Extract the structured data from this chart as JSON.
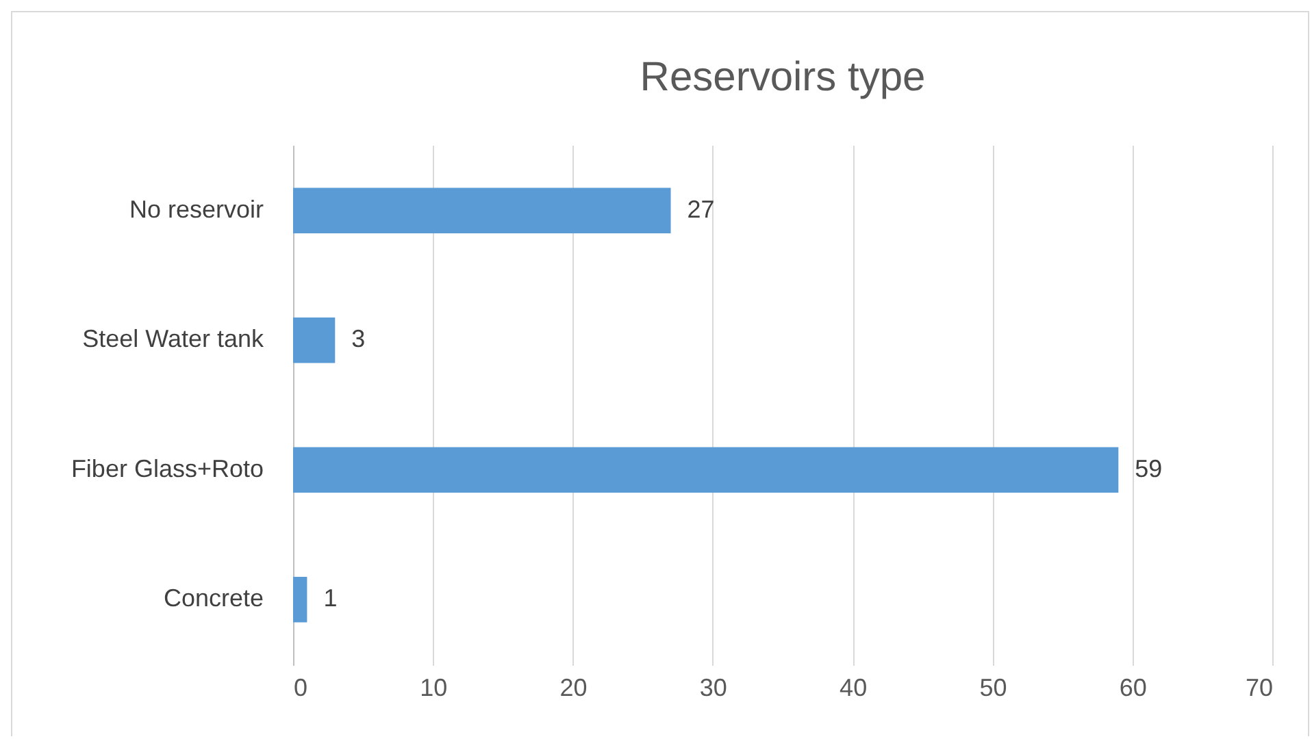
{
  "chart_data": {
    "type": "bar",
    "title": "Reservoirs type",
    "orientation": "horizontal",
    "categories": [
      "No reservoir",
      "Steel Water tank",
      "Fiber Glass+Roto",
      "Concrete"
    ],
    "values": [
      27,
      3,
      59,
      1
    ],
    "color": "#5b9bd5",
    "xlim": [
      0,
      70
    ],
    "xticks": [
      0,
      10,
      20,
      30,
      40,
      50,
      60,
      70
    ],
    "grid": "x",
    "data_labels": true
  }
}
